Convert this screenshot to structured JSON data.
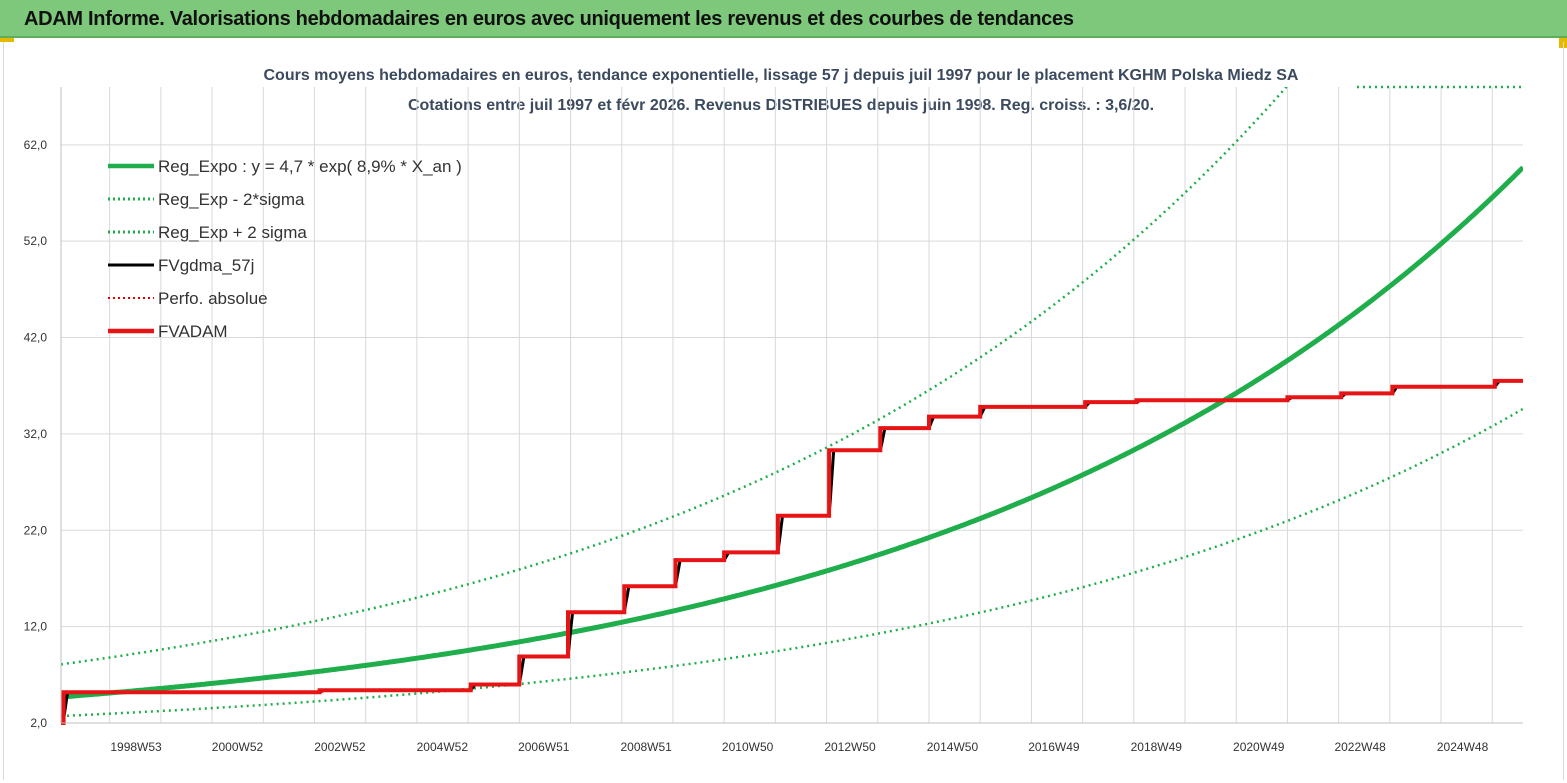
{
  "banner": {
    "title": "ADAM Informe. Valorisations hebdomadaires en euros avec uniquement les revenus et des courbes de tendances"
  },
  "chart_data": {
    "type": "line",
    "title": "Cours moyens hebdomadaires en euros, tendance exponentielle, lissage 57 j depuis juil 1997 pour le placement KGHM Polska Miedz SA",
    "subtitle": "Cotations entre juil 1997 et févr 2026. Revenus DISTRIBUES depuis juin 1998. Reg. croiss. : 3,6/20.",
    "xlabel": "",
    "ylabel": "",
    "x_range": [
      1997.55,
      2026.1
    ],
    "ylim": [
      2,
      68
    ],
    "y_ticks": [
      "2,0",
      "12,0",
      "22,0",
      "32,0",
      "42,0",
      "52,0",
      "62,0"
    ],
    "x_ticks": [
      "1998W53",
      "2000W52",
      "2002W52",
      "2004W52",
      "2006W51",
      "2008W51",
      "2010W50",
      "2012W50",
      "2014W50",
      "2016W49",
      "2018W49",
      "2020W49",
      "2022W48",
      "2024W48"
    ],
    "grid": true,
    "legend_position": "top-left",
    "regression": {
      "a": 4.7,
      "rate_pct": 8.9,
      "x0": 1997.55,
      "sigma_factor_upper": 1.72,
      "sigma_factor_lower": 0.58
    },
    "series": [
      {
        "name": "Reg_Expo : y = 4,7 * exp( 8,9% *  X_an )",
        "color": "#1fae4b",
        "style": "solid-thick"
      },
      {
        "name": "Reg_Exp - 2*sigma",
        "color": "#1fae4b",
        "style": "dotted"
      },
      {
        "name": "Reg_Exp + 2 sigma",
        "color": "#1fae4b",
        "style": "dotted"
      },
      {
        "name": "FVgdma_57j",
        "color": "#000000",
        "style": "solid",
        "smoothed_from": "FVADAM"
      },
      {
        "name": "Perfo. absolue",
        "color": "#e00000",
        "style": "dotted"
      },
      {
        "name": "FVADAM",
        "color": "#e61414",
        "style": "solid-thick",
        "steps": [
          {
            "x": 1997.55,
            "y": 2.0
          },
          {
            "x": 1997.6,
            "y": 5.2
          },
          {
            "x": 2002.6,
            "y": 5.4
          },
          {
            "x": 2005.55,
            "y": 6.0
          },
          {
            "x": 2006.5,
            "y": 8.9
          },
          {
            "x": 2007.45,
            "y": 13.5
          },
          {
            "x": 2008.55,
            "y": 16.2
          },
          {
            "x": 2009.55,
            "y": 18.9
          },
          {
            "x": 2010.5,
            "y": 19.7
          },
          {
            "x": 2011.55,
            "y": 23.5
          },
          {
            "x": 2012.55,
            "y": 30.3
          },
          {
            "x": 2013.55,
            "y": 32.6
          },
          {
            "x": 2014.5,
            "y": 33.8
          },
          {
            "x": 2015.5,
            "y": 34.8
          },
          {
            "x": 2017.55,
            "y": 35.3
          },
          {
            "x": 2018.55,
            "y": 35.5
          },
          {
            "x": 2021.5,
            "y": 35.8
          },
          {
            "x": 2022.55,
            "y": 36.2
          },
          {
            "x": 2023.55,
            "y": 36.9
          },
          {
            "x": 2025.55,
            "y": 37.5
          }
        ],
        "end_x": 2026.1
      }
    ]
  }
}
